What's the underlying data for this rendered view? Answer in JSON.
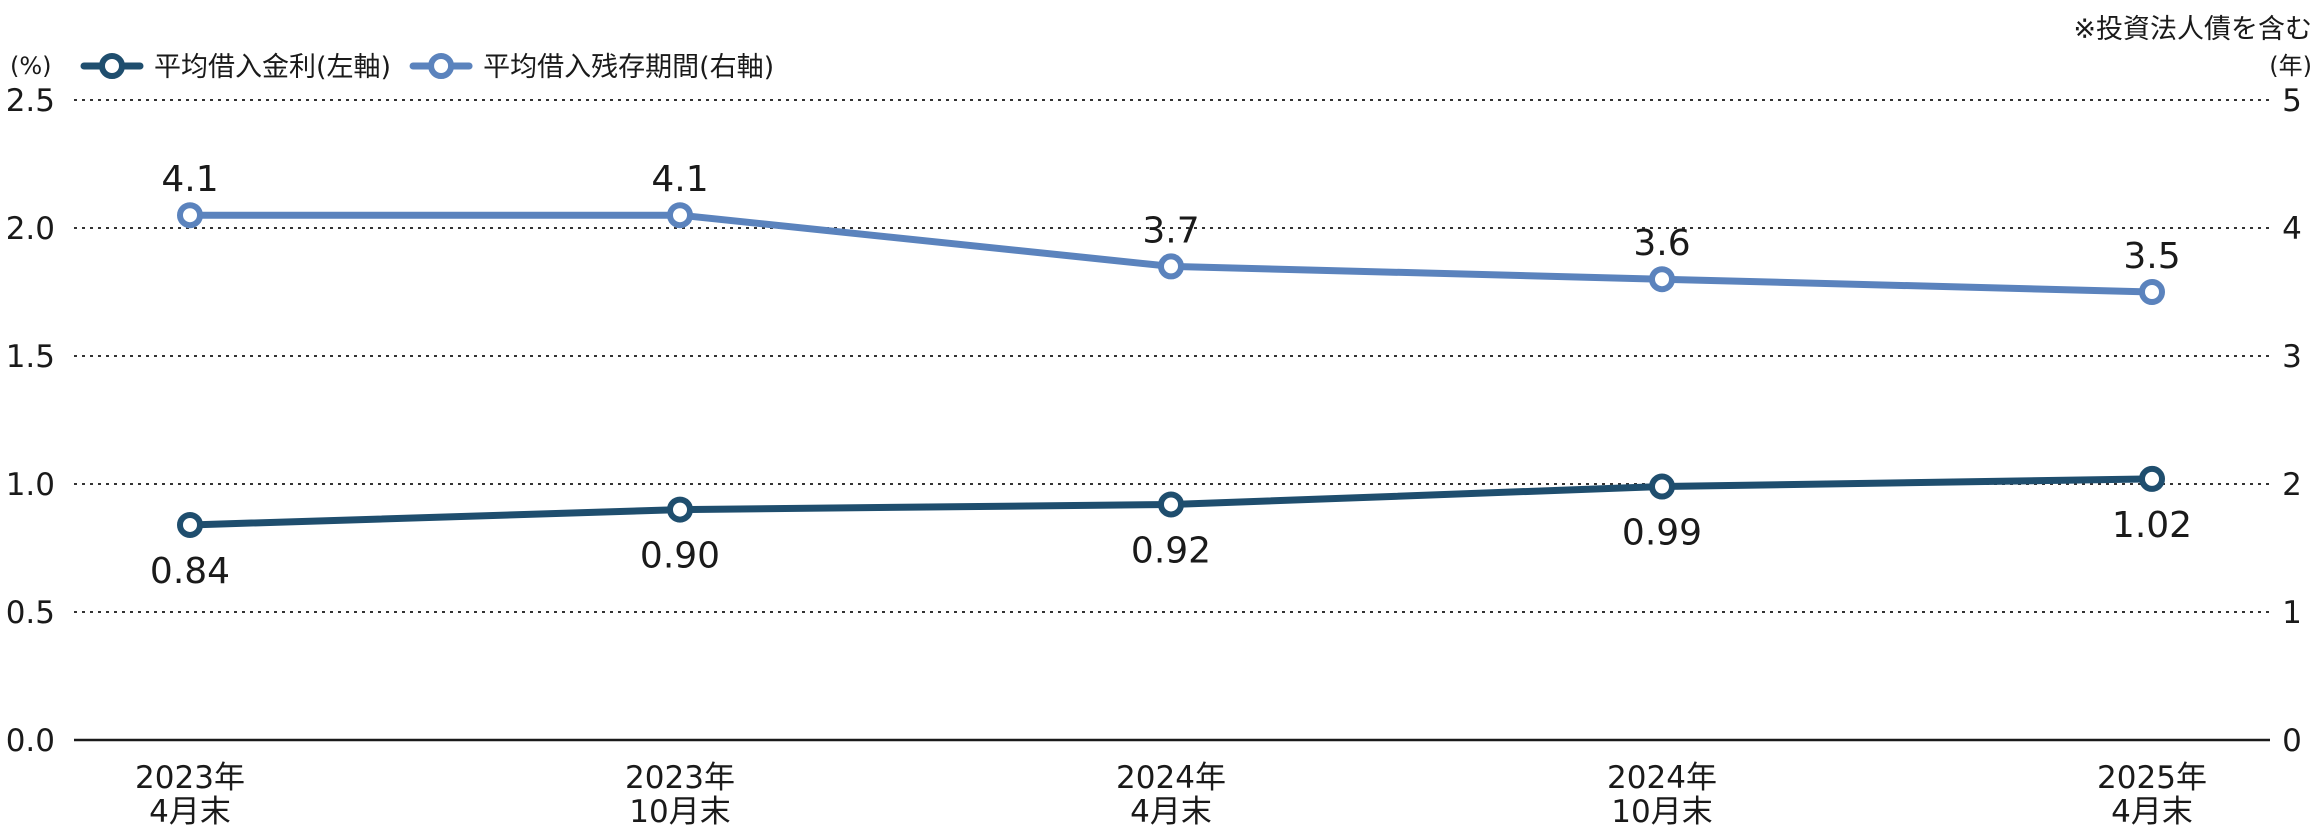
{
  "chart_data": {
    "type": "line",
    "note": "※投資法人債を含む",
    "left_axis": {
      "unit": "(%)",
      "range": [
        0.0,
        2.5
      ],
      "ticks": [
        "0.0",
        "0.5",
        "1.0",
        "1.5",
        "2.0",
        "2.5"
      ]
    },
    "right_axis": {
      "unit": "(年)",
      "range": [
        0,
        5
      ],
      "ticks": [
        "0",
        "1",
        "2",
        "3",
        "4",
        "5"
      ]
    },
    "categories": [
      [
        "2023年",
        "4月末"
      ],
      [
        "2023年",
        "10月末"
      ],
      [
        "2024年",
        "4月末"
      ],
      [
        "2024年",
        "10月末"
      ],
      [
        "2025年",
        "4月末"
      ]
    ],
    "grid": "dotted horizontal",
    "legend_position": "top-left",
    "series": [
      {
        "name": "平均借入金利(左軸)",
        "axis": "left",
        "color": "#1f4e6e",
        "values": [
          0.84,
          0.9,
          0.92,
          0.99,
          1.02
        ],
        "labels": [
          "0.84",
          "0.90",
          "0.92",
          "0.99",
          "1.02"
        ],
        "label_position": "below"
      },
      {
        "name": "平均借入残存期間(右軸)",
        "axis": "right",
        "color": "#5b83bd",
        "values": [
          4.1,
          4.1,
          3.7,
          3.6,
          3.5
        ],
        "labels": [
          "4.1",
          "4.1",
          "3.7",
          "3.6",
          "3.5"
        ],
        "label_position": "above"
      }
    ]
  }
}
